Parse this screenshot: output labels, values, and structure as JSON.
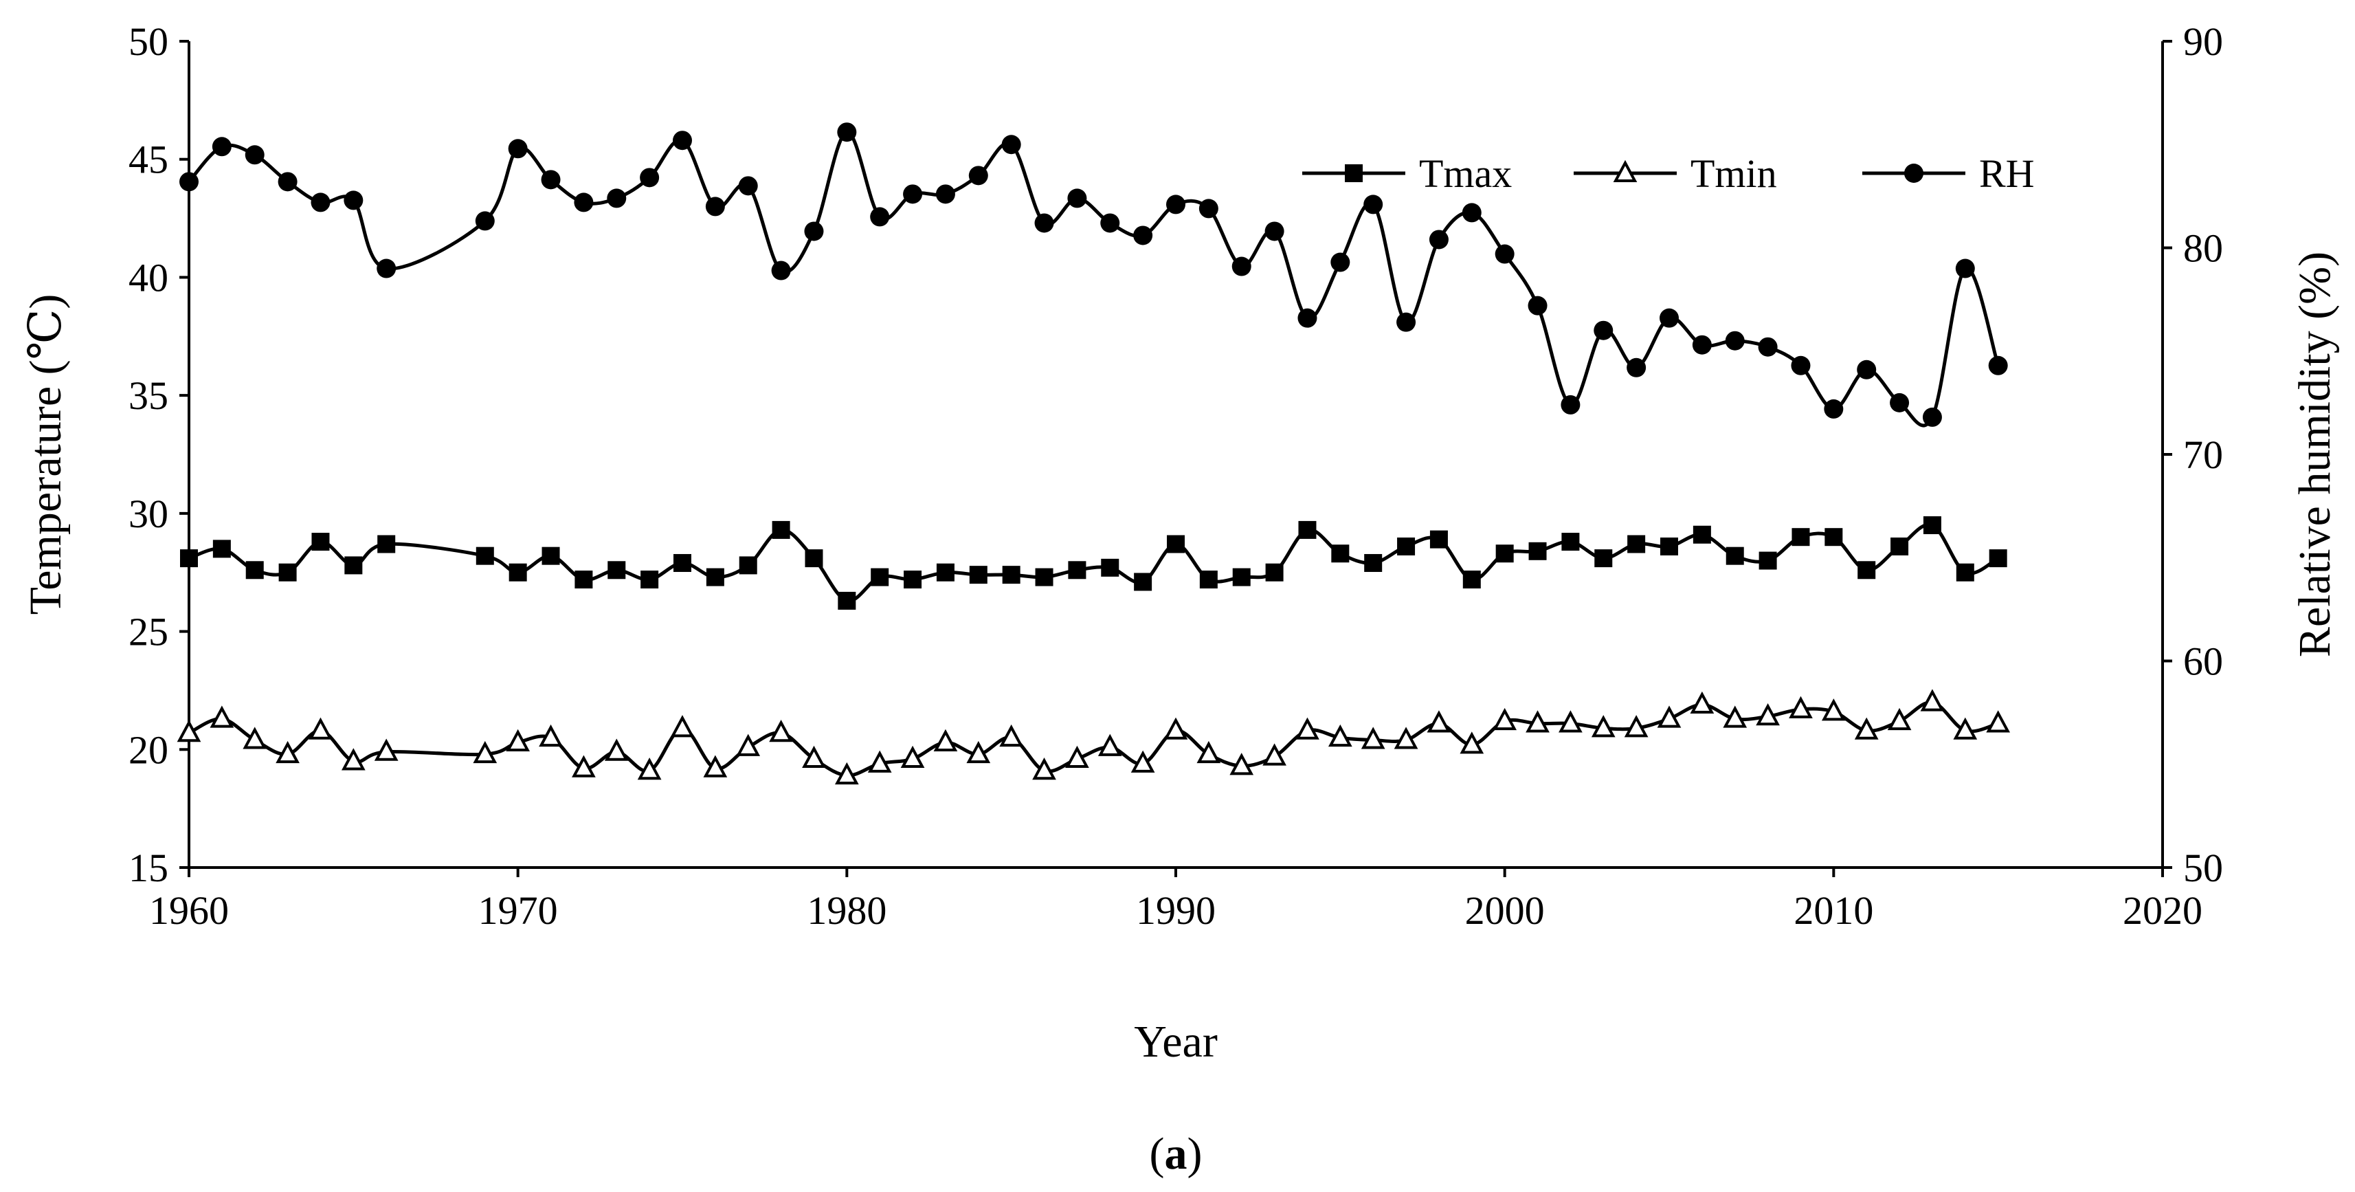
{
  "chart_data": {
    "type": "line",
    "x": [
      1960,
      1961,
      1962,
      1963,
      1964,
      1965,
      1966,
      1969,
      1970,
      1971,
      1972,
      1973,
      1974,
      1975,
      1976,
      1977,
      1978,
      1979,
      1980,
      1981,
      1982,
      1983,
      1984,
      1985,
      1986,
      1987,
      1988,
      1989,
      1990,
      1991,
      1992,
      1993,
      1994,
      1995,
      1996,
      1997,
      1998,
      1999,
      2000,
      2001,
      2002,
      2003,
      2004,
      2005,
      2006,
      2007,
      2008,
      2009,
      2010,
      2011,
      2012,
      2013,
      2014,
      2015
    ],
    "series": [
      {
        "name": "Tmax",
        "axis": "left",
        "marker": "square",
        "values": [
          28.1,
          28.5,
          27.6,
          27.5,
          28.8,
          27.8,
          28.7,
          28.2,
          27.5,
          28.2,
          27.2,
          27.6,
          27.2,
          27.9,
          27.3,
          27.8,
          29.3,
          28.1,
          26.3,
          27.3,
          27.2,
          27.5,
          27.4,
          27.4,
          27.3,
          27.6,
          27.7,
          27.1,
          28.7,
          27.2,
          27.3,
          27.5,
          29.3,
          28.3,
          27.9,
          28.6,
          28.9,
          27.2,
          28.3,
          28.4,
          28.8,
          28.1,
          28.7,
          28.6,
          29.1,
          28.2,
          28.0,
          29.0,
          29.0,
          27.6,
          28.6,
          29.5,
          27.5,
          28.1
        ]
      },
      {
        "name": "Tmin",
        "axis": "left",
        "marker": "triangle",
        "values": [
          20.7,
          21.3,
          20.4,
          19.8,
          20.8,
          19.5,
          19.9,
          19.8,
          20.3,
          20.5,
          19.2,
          19.9,
          19.1,
          20.9,
          19.2,
          20.1,
          20.7,
          19.6,
          18.9,
          19.4,
          19.6,
          20.3,
          19.8,
          20.5,
          19.1,
          19.6,
          20.1,
          19.4,
          20.8,
          19.8,
          19.3,
          19.7,
          20.8,
          20.5,
          20.4,
          20.4,
          21.1,
          20.2,
          21.2,
          21.1,
          21.1,
          20.9,
          20.9,
          21.3,
          21.9,
          21.3,
          21.4,
          21.7,
          21.6,
          20.8,
          21.2,
          22.0,
          20.8,
          21.1
        ]
      },
      {
        "name": "RH",
        "axis": "right",
        "marker": "circle",
        "values": [
          83.2,
          84.9,
          84.5,
          83.2,
          82.2,
          82.3,
          79.0,
          81.3,
          84.8,
          83.3,
          82.2,
          82.4,
          83.4,
          85.2,
          82.0,
          83.0,
          78.9,
          80.8,
          85.6,
          81.5,
          82.6,
          82.6,
          83.5,
          85.0,
          81.2,
          82.4,
          81.2,
          80.6,
          82.1,
          81.9,
          79.1,
          80.8,
          76.6,
          79.3,
          82.1,
          76.4,
          80.4,
          81.7,
          79.7,
          77.2,
          72.4,
          76.0,
          74.2,
          76.6,
          75.3,
          75.5,
          75.2,
          74.3,
          72.2,
          74.1,
          72.5,
          71.8,
          79.0,
          74.3
        ]
      }
    ],
    "xlabel": "Year",
    "ylabel": "Temperature (℃)",
    "y2label": "Relative humidity (%)",
    "xlim": [
      1960,
      2020
    ],
    "ylim": [
      15,
      50
    ],
    "y2lim": [
      50,
      90
    ],
    "xticks": [
      "1960",
      "1970",
      "1980",
      "1990",
      "2000",
      "2010",
      "2020"
    ],
    "yticks": [
      "15",
      "20",
      "25",
      "30",
      "35",
      "40",
      "45",
      "50"
    ],
    "y2ticks": [
      "50",
      "60",
      "70",
      "80",
      "90"
    ],
    "legend_position": "top-right",
    "grid": false,
    "color": "#000000"
  },
  "caption": {
    "open": "(",
    "letter": "a",
    "close": ")"
  }
}
